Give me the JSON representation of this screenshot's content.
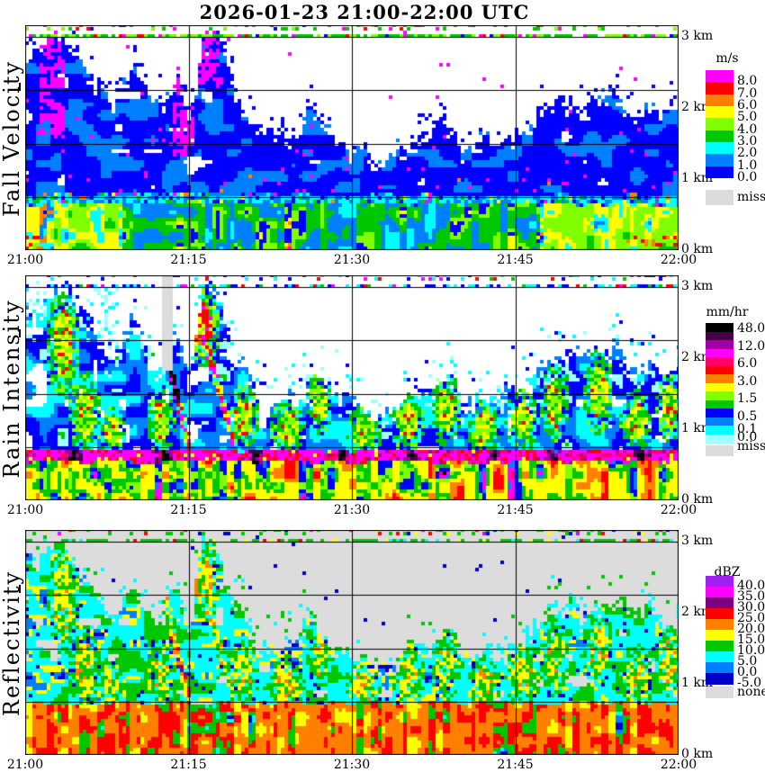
{
  "title": "2026-01-23  21:00-22:00 UTC",
  "x_axis": {
    "ticks": [
      "21:00",
      "21:15",
      "21:30",
      "21:45",
      "22:00"
    ]
  },
  "y_axis": {
    "labels": [
      "3 km",
      "2 km",
      "1 km",
      "0 km"
    ],
    "km": [
      3,
      2,
      1,
      0
    ]
  },
  "chart_data": {
    "type": "heatmap",
    "subtype": "time-height radar profiler triptych",
    "x_start": "21:00",
    "x_end": "22:00",
    "x_tick_interval_min": 15,
    "y_km_range": [
      0,
      3.165
    ],
    "y_gridlines_km": [
      3.0,
      2.25,
      1.5,
      0.75
    ],
    "artifact_dash_line_km": 3.0,
    "echo_top_km_by_minute": [
      [
        0,
        2.9
      ],
      [
        1,
        2.75
      ],
      [
        2,
        2.95
      ],
      [
        3,
        3.08
      ],
      [
        4,
        2.95
      ],
      [
        5,
        2.75
      ],
      [
        6,
        2.55
      ],
      [
        7,
        2.3
      ],
      [
        8,
        2.05
      ],
      [
        9,
        2.3
      ],
      [
        10,
        2.6
      ],
      [
        11,
        2.3
      ],
      [
        12,
        1.95
      ],
      [
        13,
        2.15
      ],
      [
        14,
        2.45
      ],
      [
        15,
        1.75
      ],
      [
        15.7,
        2.4
      ],
      [
        16.3,
        3.12
      ],
      [
        17.5,
        3.05
      ],
      [
        18.5,
        2.5
      ],
      [
        19.5,
        2.15
      ],
      [
        21,
        1.7
      ],
      [
        23,
        1.55
      ],
      [
        25,
        1.6
      ],
      [
        26,
        2.05
      ],
      [
        27,
        1.75
      ],
      [
        29,
        1.5
      ],
      [
        31,
        1.35
      ],
      [
        33,
        1.25
      ],
      [
        35,
        1.5
      ],
      [
        37,
        1.6
      ],
      [
        38.5,
        1.9
      ],
      [
        40,
        1.5
      ],
      [
        42,
        1.55
      ],
      [
        44,
        1.5
      ],
      [
        45.5,
        1.7
      ],
      [
        47,
        1.95
      ],
      [
        49,
        2.15
      ],
      [
        51,
        2.05
      ],
      [
        53,
        2.3
      ],
      [
        54.5,
        2.1
      ],
      [
        56,
        1.95
      ],
      [
        57.5,
        2.05
      ],
      [
        58.5,
        1.8
      ],
      [
        60,
        2.15
      ]
    ],
    "convective_cells": [
      [
        3.5,
        2.2,
        1.5,
        0.8
      ],
      [
        5.5,
        1.2,
        1.5,
        0.6
      ],
      [
        8,
        0.95,
        1.2,
        0.35
      ],
      [
        12.5,
        1.1,
        1.3,
        0.5
      ],
      [
        16.5,
        2.4,
        1.3,
        0.6
      ],
      [
        20,
        1.15,
        1.5,
        0.45
      ],
      [
        24,
        1.0,
        1.6,
        0.4
      ],
      [
        27,
        1.35,
        1.2,
        0.45
      ],
      [
        31,
        0.95,
        1.8,
        0.35
      ],
      [
        35,
        1.1,
        1.6,
        0.45
      ],
      [
        38.5,
        1.25,
        1.4,
        0.5
      ],
      [
        42,
        1.0,
        1.5,
        0.4
      ],
      [
        45.5,
        1.1,
        1.5,
        0.45
      ],
      [
        48.5,
        1.35,
        1.3,
        0.55
      ],
      [
        52.5,
        1.5,
        1.4,
        0.6
      ],
      [
        56,
        1.1,
        1.5,
        0.45
      ],
      [
        59,
        1.3,
        1.2,
        0.5
      ]
    ],
    "bright_band_cores_min": [
      [
        4.5,
        1.4
      ],
      [
        12.8,
        1.2
      ],
      [
        21,
        1.0
      ],
      [
        29,
        1.0
      ],
      [
        35.3,
        1.0
      ],
      [
        43,
        1.0
      ],
      [
        48.3,
        1.2
      ],
      [
        56.5,
        1.2
      ]
    ],
    "fall_streaks": [
      {
        "from_min_km": [
          11.3,
          3.12
        ],
        "to_min_km": [
          15.0,
          0.75
        ],
        "width_km": 0.13
      },
      {
        "from_min_km": [
          15.3,
          2.8
        ],
        "to_min_km": [
          19.2,
          0.8
        ],
        "width_km": 0.11
      }
    ],
    "elevated_cell_min_km": [
      16.2,
      2.45,
      1.4,
      0.45
    ],
    "panels": [
      {
        "label": "Fall Velocity",
        "units": "m/s",
        "background": "#FFFFFF",
        "env_scale": 1.0,
        "surface_top_km": 0.64,
        "features": {
          "magenta_streaks": [
            [
              1.2,
              3.6,
              1.6,
              3.05
            ],
            [
              13.6,
              15.4,
              1.3,
              2.65
            ],
            [
              15.8,
              18.0,
              2.3,
              3.12
            ]
          ]
        },
        "colorbar": {
          "title": "m/s",
          "colors": [
            "#FF00FF",
            "#FF0000",
            "#FF8000",
            "#FFFF00",
            "#80FF00",
            "#00C800",
            "#00FFFF",
            "#0080FF",
            "#0000FF"
          ],
          "tick_labels": [
            "8.0",
            "7.0",
            "6.0",
            "5.0",
            "4.0",
            "3.0",
            "2.0",
            "1.0",
            "0.0"
          ],
          "missing": {
            "label": "miss",
            "color": "#DCDCDC"
          }
        }
      },
      {
        "label": "Rain Intensity",
        "units": "mm/hr",
        "background": "#FFFFFF",
        "env_scale": 0.97,
        "surface_top_km": 0.54,
        "bright_band_km": [
          0.54,
          0.7
        ],
        "features": {
          "gray_column_min": [
            12.55,
            13.6
          ],
          "gray_column_above_km": 1.82
        },
        "colorbar": {
          "title": "mm/hr",
          "colors": [
            "#000000",
            "#460046",
            "#A000A0",
            "#FF00FF",
            "#FF0064",
            "#FF0000",
            "#FF8000",
            "#FFFF00",
            "#80FF00",
            "#00C800",
            "#0000FF",
            "#0080FF",
            "#00FFFF",
            "#A0FFFF"
          ],
          "tick_labels": [
            "48.0",
            "12.0",
            "6.0",
            "3.0",
            "1.5",
            "0.5",
            "0.1",
            "0.0"
          ],
          "missing": {
            "label": "miss",
            "color": "#DCDCDC"
          }
        }
      },
      {
        "label": "Reflectivity",
        "units": "dBZ",
        "background": "#DCDCDC",
        "env_scale": 0.97,
        "surface_top_km": 0.73,
        "features": {},
        "colorbar": {
          "title": "dBZ",
          "colors": [
            "#A020F0",
            "#FF00FF",
            "#800080",
            "#FF0000",
            "#FF8000",
            "#FFFF00",
            "#00C800",
            "#00FFFF",
            "#0080FF",
            "#0000C8"
          ],
          "tick_labels": [
            "40.0",
            "35.0",
            "30.0",
            "25.0",
            "20.0",
            "15.0",
            "10.0",
            "5.0",
            "0.0",
            "-5.0"
          ],
          "missing": {
            "label": "none",
            "color": "#DCDCDC"
          }
        }
      }
    ]
  }
}
